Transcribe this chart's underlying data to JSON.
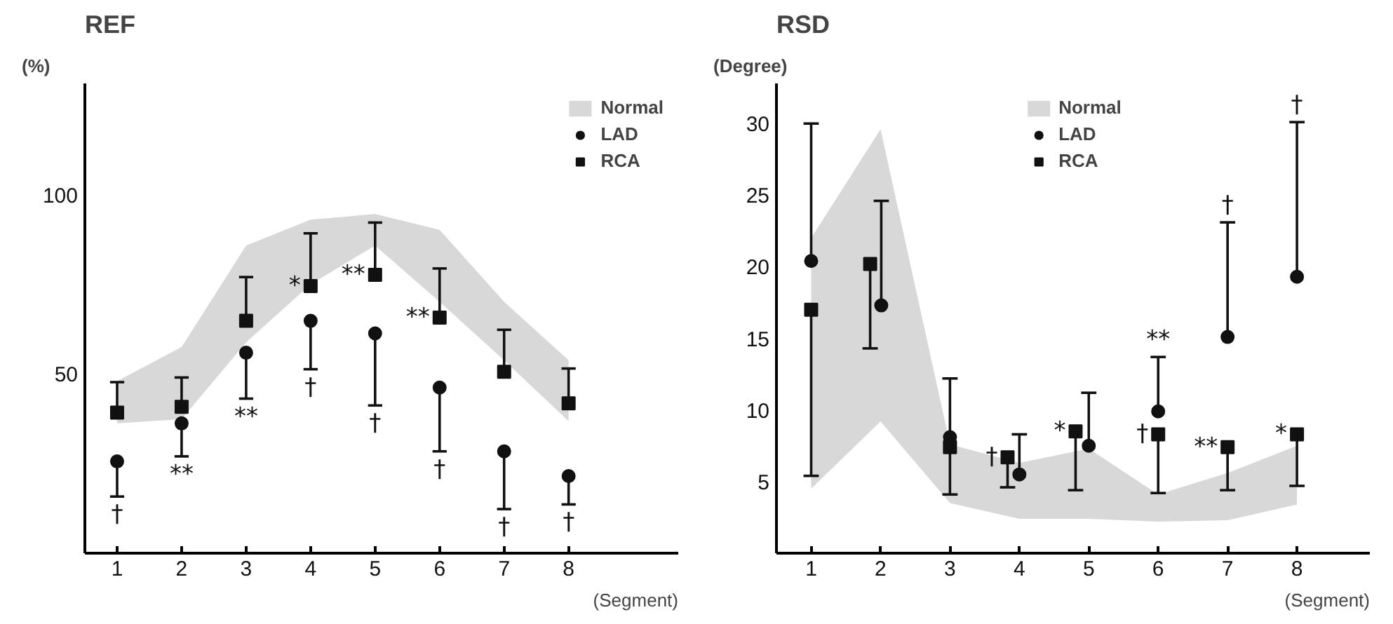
{
  "chart_data": [
    {
      "type": "scatter",
      "title": "REF",
      "ylabel": "(%)",
      "xlabel": "(Segment)",
      "x": [
        1,
        2,
        3,
        4,
        5,
        6,
        7,
        8
      ],
      "xlim": [
        0.5,
        9.7
      ],
      "xticks": [
        1,
        2,
        3,
        4,
        5,
        6,
        7,
        8
      ],
      "ylim": [
        0,
        131
      ],
      "yticks": [
        50,
        100
      ],
      "grid": false,
      "legend": "top right",
      "series": [
        {
          "name": "Normal",
          "type": "area",
          "color": "#d4d4d4",
          "values": [
            null,
            null,
            null,
            null,
            null,
            null,
            null,
            null
          ],
          "lower": [
            36.2,
            37.4,
            58.8,
            75,
            85.8,
            70.1,
            53.8,
            36.8
          ],
          "upper": [
            48,
            57.5,
            85.8,
            93,
            94.6,
            90.2,
            70.1,
            53.8
          ]
        },
        {
          "name": "LAD",
          "marker": "circle",
          "color": "#111111",
          "values": [
            25.6,
            36.2,
            55.9,
            64.8,
            61.3,
            46.2,
            28.4,
            21.5
          ],
          "errors": [
            [
              15.8,
              25.6
            ],
            [
              27,
              36.2
            ],
            [
              43.1,
              55.9
            ],
            [
              51.3,
              64.8
            ],
            [
              41.2,
              61.3
            ],
            [
              28.4,
              46.2
            ],
            [
              12.3,
              28.4
            ],
            [
              13.6,
              21.5
            ]
          ]
        },
        {
          "name": "RCA",
          "marker": "square",
          "color": "#111111",
          "values": [
            39.2,
            40.8,
            64.8,
            74.5,
            77.6,
            65.7,
            50.6,
            41.8
          ],
          "errors": [
            [
              39.2,
              47.7
            ],
            [
              40.8,
              49
            ],
            [
              64.8,
              77
            ],
            [
              74.5,
              89.2
            ],
            [
              77.6,
              92.2
            ],
            [
              65.7,
              79.4
            ],
            [
              50.6,
              62.3
            ],
            [
              41.8,
              51.5
            ]
          ]
        }
      ],
      "annotations": [
        {
          "text": "†",
          "x": 1,
          "y": 15.8
        },
        {
          "text": "**",
          "x": 2,
          "y": 27
        },
        {
          "text": "**",
          "x": 3,
          "y": 43.1
        },
        {
          "text": "*",
          "x": 4,
          "y": 74.5
        },
        {
          "text": "†",
          "x": 4,
          "y": 51.3
        },
        {
          "text": "**",
          "x": 5,
          "y": 77.6
        },
        {
          "text": "†",
          "x": 5,
          "y": 41.2
        },
        {
          "text": "**",
          "x": 6,
          "y": 65.7
        },
        {
          "text": "†",
          "x": 6,
          "y": 28.4
        },
        {
          "text": "†",
          "x": 7,
          "y": 12.3
        },
        {
          "text": "†",
          "x": 8,
          "y": 13.6
        }
      ]
    },
    {
      "type": "scatter",
      "title": "RSD",
      "ylabel": "(Degree)",
      "xlabel": "(Segment)",
      "xlim": [
        0.5,
        9.05
      ],
      "xticks": [
        1,
        2,
        3,
        4,
        5,
        6,
        7,
        8
      ],
      "ylim": [
        0,
        32.8
      ],
      "yticks": [
        5,
        10,
        15,
        20,
        25,
        30
      ],
      "grid": false,
      "legend": "top",
      "series": [
        {
          "name": "Normal",
          "type": "area",
          "color": "#d4d4d4",
          "x": [
            1,
            2,
            3,
            4,
            5,
            6,
            7,
            8
          ],
          "values": [
            null,
            null,
            null,
            null,
            null,
            null,
            null,
            null
          ],
          "lower": [
            4.5,
            9.2,
            3.5,
            2.4,
            2.4,
            2.2,
            2.3,
            3.4
          ],
          "upper": [
            22,
            29.6,
            7.6,
            6.3,
            7.3,
            4.1,
            5.6,
            7.5
          ]
        },
        {
          "name": "LAD",
          "marker": "circle",
          "color": "#111111",
          "x": [
            1,
            2.01,
            3,
            4,
            5,
            6,
            7,
            8
          ],
          "values": [
            20.4,
            17.3,
            8.1,
            5.5,
            7.5,
            9.9,
            15.1,
            19.3
          ],
          "errors": [
            [
              20.4,
              30
            ],
            [
              17.3,
              24.6
            ],
            [
              8.1,
              12.2
            ],
            [
              5.5,
              8.3
            ],
            [
              7.5,
              11.2
            ],
            [
              9.9,
              13.7
            ],
            [
              15.1,
              23.1
            ],
            [
              19.3,
              30.1
            ]
          ]
        },
        {
          "name": "RCA",
          "marker": "square",
          "color": "#111111",
          "x": [
            1,
            1.85,
            3,
            3.83,
            4.81,
            6,
            7,
            8
          ],
          "values": [
            17,
            20.2,
            7.4,
            6.7,
            8.5,
            8.3,
            7.4,
            8.3
          ],
          "errors": [
            [
              5.4,
              17
            ],
            [
              14.3,
              20.2
            ],
            [
              4.1,
              7.4
            ],
            [
              4.6,
              6.7
            ],
            [
              4.4,
              8.5
            ],
            [
              4.2,
              8.3
            ],
            [
              4.4,
              7.4
            ],
            [
              4.7,
              8.3
            ]
          ]
        }
      ],
      "annotations": [
        {
          "text": "†",
          "x": 3.83,
          "y": 6.7
        },
        {
          "text": "*",
          "x": 4.81,
          "y": 8.5
        },
        {
          "text": "**",
          "x": 6,
          "y": 13.7
        },
        {
          "text": "†",
          "x": 6,
          "y": 8.3
        },
        {
          "text": "†",
          "x": 7,
          "y": 23.1
        },
        {
          "text": "**",
          "x": 7,
          "y": 7.4
        },
        {
          "text": "†",
          "x": 8,
          "y": 30.1
        },
        {
          "text": "*",
          "x": 8,
          "y": 8.3
        }
      ]
    }
  ]
}
